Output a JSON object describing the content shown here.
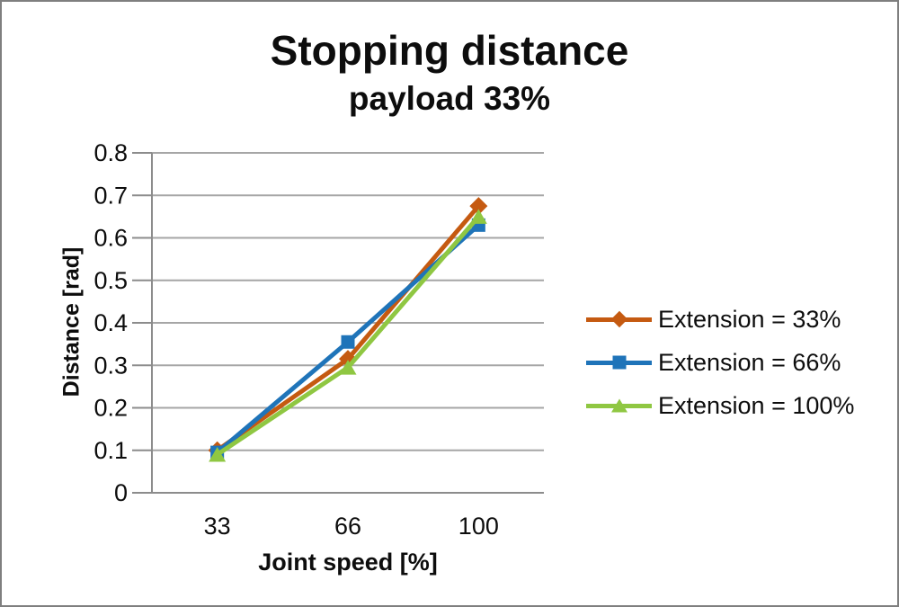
{
  "window": {
    "background": "#ffffff",
    "border_color": "#7f7f7f"
  },
  "chart_data": {
    "type": "line",
    "title": "Stopping distance",
    "subtitle": "payload 33%",
    "xlabel": "Joint speed [%]",
    "ylabel": "Distance [rad]",
    "categories": [
      "33",
      "66",
      "100"
    ],
    "ylim": [
      0,
      0.8
    ],
    "y_ticks": [
      0,
      0.1,
      0.2,
      0.3,
      0.4,
      0.5,
      0.6,
      0.7,
      0.8
    ],
    "y_tick_labels": [
      "0",
      "0.1",
      "0.2",
      "0.3",
      "0.4",
      "0.5",
      "0.6",
      "0.7",
      "0.8"
    ],
    "grid": true,
    "legend_position": "right",
    "gridline_color": "#a6a6a6",
    "axis_color": "#8c8c8c",
    "text_color": "#0d0d0d",
    "series": [
      {
        "name": "Extension = 33%",
        "marker": "diamond",
        "color": "#c55a11",
        "values": [
          0.1,
          0.315,
          0.675
        ]
      },
      {
        "name": "Extension = 66%",
        "marker": "square",
        "color": "#1f74b9",
        "values": [
          0.095,
          0.355,
          0.63
        ]
      },
      {
        "name": "Extension = 100%",
        "marker": "triangle",
        "color": "#8fc742",
        "values": [
          0.09,
          0.295,
          0.65
        ]
      }
    ]
  }
}
